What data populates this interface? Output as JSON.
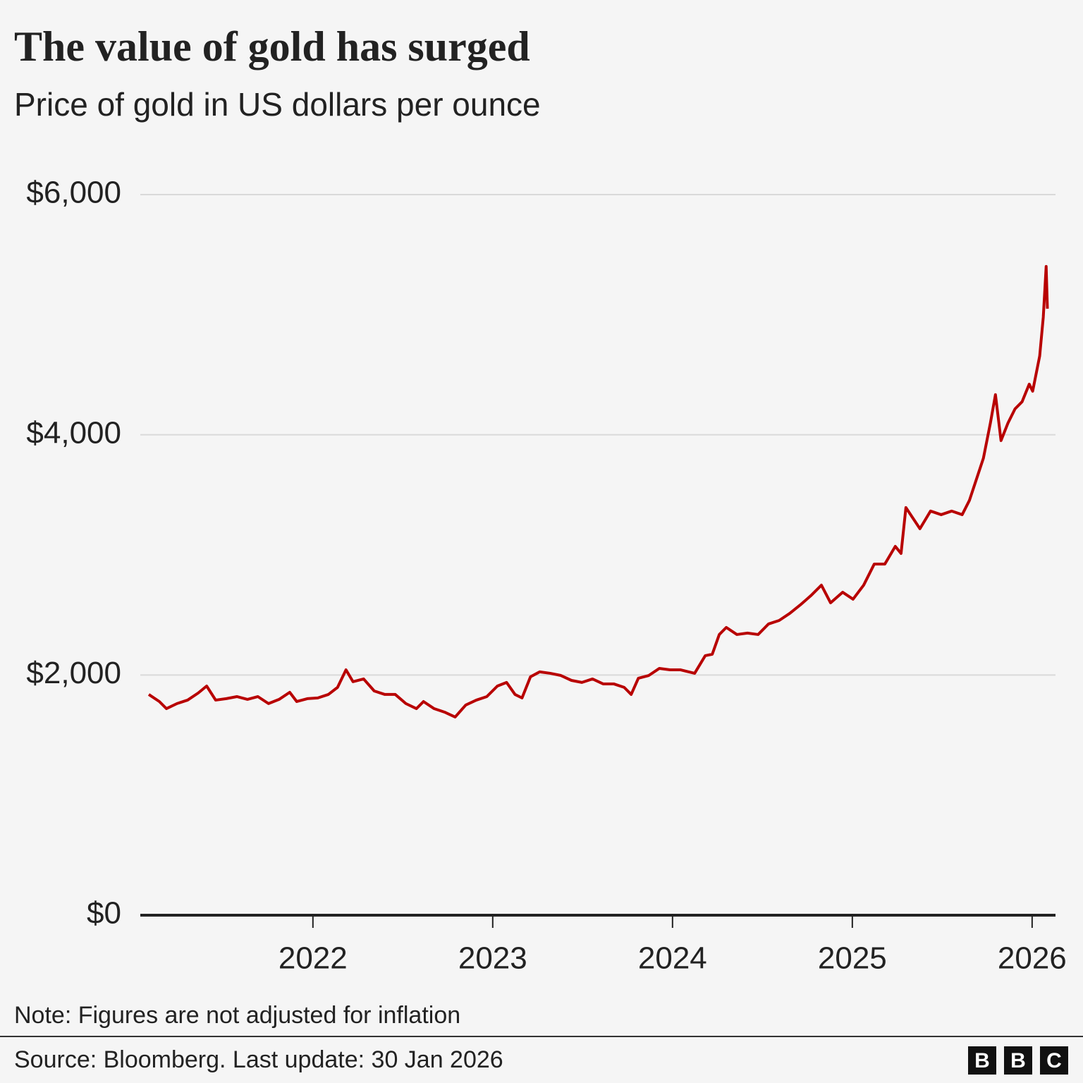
{
  "chart_data": {
    "type": "line",
    "title": "The value of gold has surged",
    "subtitle": "Price of gold in US dollars per ounce",
    "note": "Note: Figures are not adjusted for inflation",
    "source": "Source: Bloomberg. Last update: 30 Jan 2026",
    "logo": [
      "B",
      "B",
      "C"
    ],
    "color": "#b80000",
    "grid": true,
    "x": [
      2021.087,
      2021.146,
      2021.185,
      2021.244,
      2021.303,
      2021.362,
      2021.409,
      2021.459,
      2021.518,
      2021.577,
      2021.636,
      2021.694,
      2021.753,
      2021.812,
      2021.871,
      2021.91,
      2021.969,
      2022.027,
      2022.086,
      2022.137,
      2022.184,
      2022.223,
      2022.282,
      2022.341,
      2022.4,
      2022.458,
      2022.517,
      2022.576,
      2022.615,
      2022.674,
      2022.732,
      2022.791,
      2022.85,
      2022.909,
      2022.967,
      2023.026,
      2023.077,
      2023.124,
      2023.163,
      2023.21,
      2023.261,
      2023.32,
      2023.379,
      2023.438,
      2023.496,
      2023.555,
      2023.614,
      2023.673,
      2023.731,
      2023.77,
      2023.81,
      2023.868,
      2023.927,
      2023.986,
      2024.045,
      2024.123,
      2024.182,
      2024.221,
      2024.26,
      2024.299,
      2024.358,
      2024.417,
      2024.476,
      2024.534,
      2024.593,
      2024.652,
      2024.711,
      2024.769,
      2024.828,
      2024.879,
      2024.946,
      2025.004,
      2025.063,
      2025.122,
      2025.181,
      2025.239,
      2025.271,
      2025.298,
      2025.337,
      2025.376,
      2025.435,
      2025.494,
      2025.553,
      2025.611,
      2025.651,
      2025.69,
      2025.729,
      2025.768,
      2025.796,
      2025.827,
      2025.866,
      2025.905,
      2025.944,
      2025.984,
      2026.003,
      2026.042,
      2026.062,
      2026.078,
      2026.085
    ],
    "values": [
      1838,
      1779,
      1720,
      1762,
      1791,
      1850,
      1908,
      1791,
      1803,
      1820,
      1797,
      1820,
      1762,
      1797,
      1856,
      1779,
      1803,
      1809,
      1838,
      1897,
      2043,
      1944,
      1967,
      1867,
      1838,
      1838,
      1762,
      1720,
      1779,
      1720,
      1691,
      1650,
      1750,
      1791,
      1820,
      1908,
      1938,
      1838,
      1809,
      1985,
      2026,
      2014,
      1996,
      1955,
      1938,
      1967,
      1926,
      1926,
      1897,
      1838,
      1973,
      1996,
      2055,
      2043,
      2043,
      2014,
      2161,
      2173,
      2337,
      2396,
      2337,
      2349,
      2337,
      2425,
      2454,
      2513,
      2584,
      2660,
      2748,
      2601,
      2689,
      2631,
      2748,
      2924,
      2924,
      3071,
      3012,
      3394,
      3306,
      3218,
      3365,
      3335,
      3365,
      3335,
      3453,
      3629,
      3805,
      4099,
      4334,
      3952,
      4099,
      4216,
      4275,
      4422,
      4363,
      4656,
      4979,
      5402,
      5050
    ],
    "xlim": [
      2021.04,
      2026.13
    ],
    "xticks": [
      2022,
      2023,
      2024,
      2025,
      2026
    ],
    "ylim": [
      0,
      6000
    ],
    "yticks": [
      {
        "value": 0,
        "label": "$0"
      },
      {
        "value": 2000,
        "label": "$2,000"
      },
      {
        "value": 4000,
        "label": "$4,000"
      },
      {
        "value": 6000,
        "label": "$6,000"
      }
    ]
  }
}
